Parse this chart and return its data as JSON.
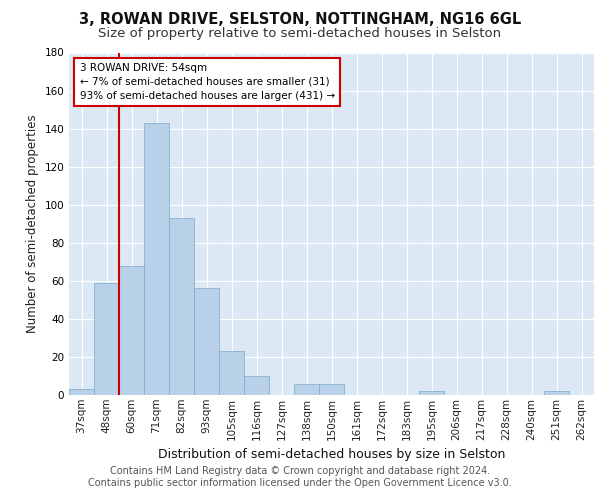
{
  "title_line1": "3, ROWAN DRIVE, SELSTON, NOTTINGHAM, NG16 6GL",
  "title_line2": "Size of property relative to semi-detached houses in Selston",
  "xlabel": "Distribution of semi-detached houses by size in Selston",
  "ylabel": "Number of semi-detached properties",
  "categories": [
    "37sqm",
    "48sqm",
    "60sqm",
    "71sqm",
    "82sqm",
    "93sqm",
    "105sqm",
    "116sqm",
    "127sqm",
    "138sqm",
    "150sqm",
    "161sqm",
    "172sqm",
    "183sqm",
    "195sqm",
    "206sqm",
    "217sqm",
    "228sqm",
    "240sqm",
    "251sqm",
    "262sqm"
  ],
  "values": [
    3,
    59,
    68,
    143,
    93,
    56,
    23,
    10,
    0,
    6,
    6,
    0,
    0,
    0,
    2,
    0,
    0,
    0,
    0,
    2,
    0
  ],
  "bar_color": "#b8d0e8",
  "bar_edge_color": "#7aaaca",
  "annotation_text": "3 ROWAN DRIVE: 54sqm\n← 7% of semi-detached houses are smaller (31)\n93% of semi-detached houses are larger (431) →",
  "annotation_box_color": "#ffffff",
  "annotation_box_edge": "#cc0000",
  "red_line_color": "#cc0000",
  "red_line_x": 1.5,
  "ylim": [
    0,
    180
  ],
  "yticks": [
    0,
    20,
    40,
    60,
    80,
    100,
    120,
    140,
    160,
    180
  ],
  "background_color": "#dce9f5",
  "grid_color": "#ffffff",
  "footer_text": "Contains HM Land Registry data © Crown copyright and database right 2024.\nContains public sector information licensed under the Open Government Licence v3.0.",
  "title_fontsize": 10.5,
  "subtitle_fontsize": 9.5,
  "xlabel_fontsize": 9,
  "ylabel_fontsize": 8.5,
  "tick_fontsize": 7.5,
  "footer_fontsize": 7,
  "ann_fontsize": 7.5
}
